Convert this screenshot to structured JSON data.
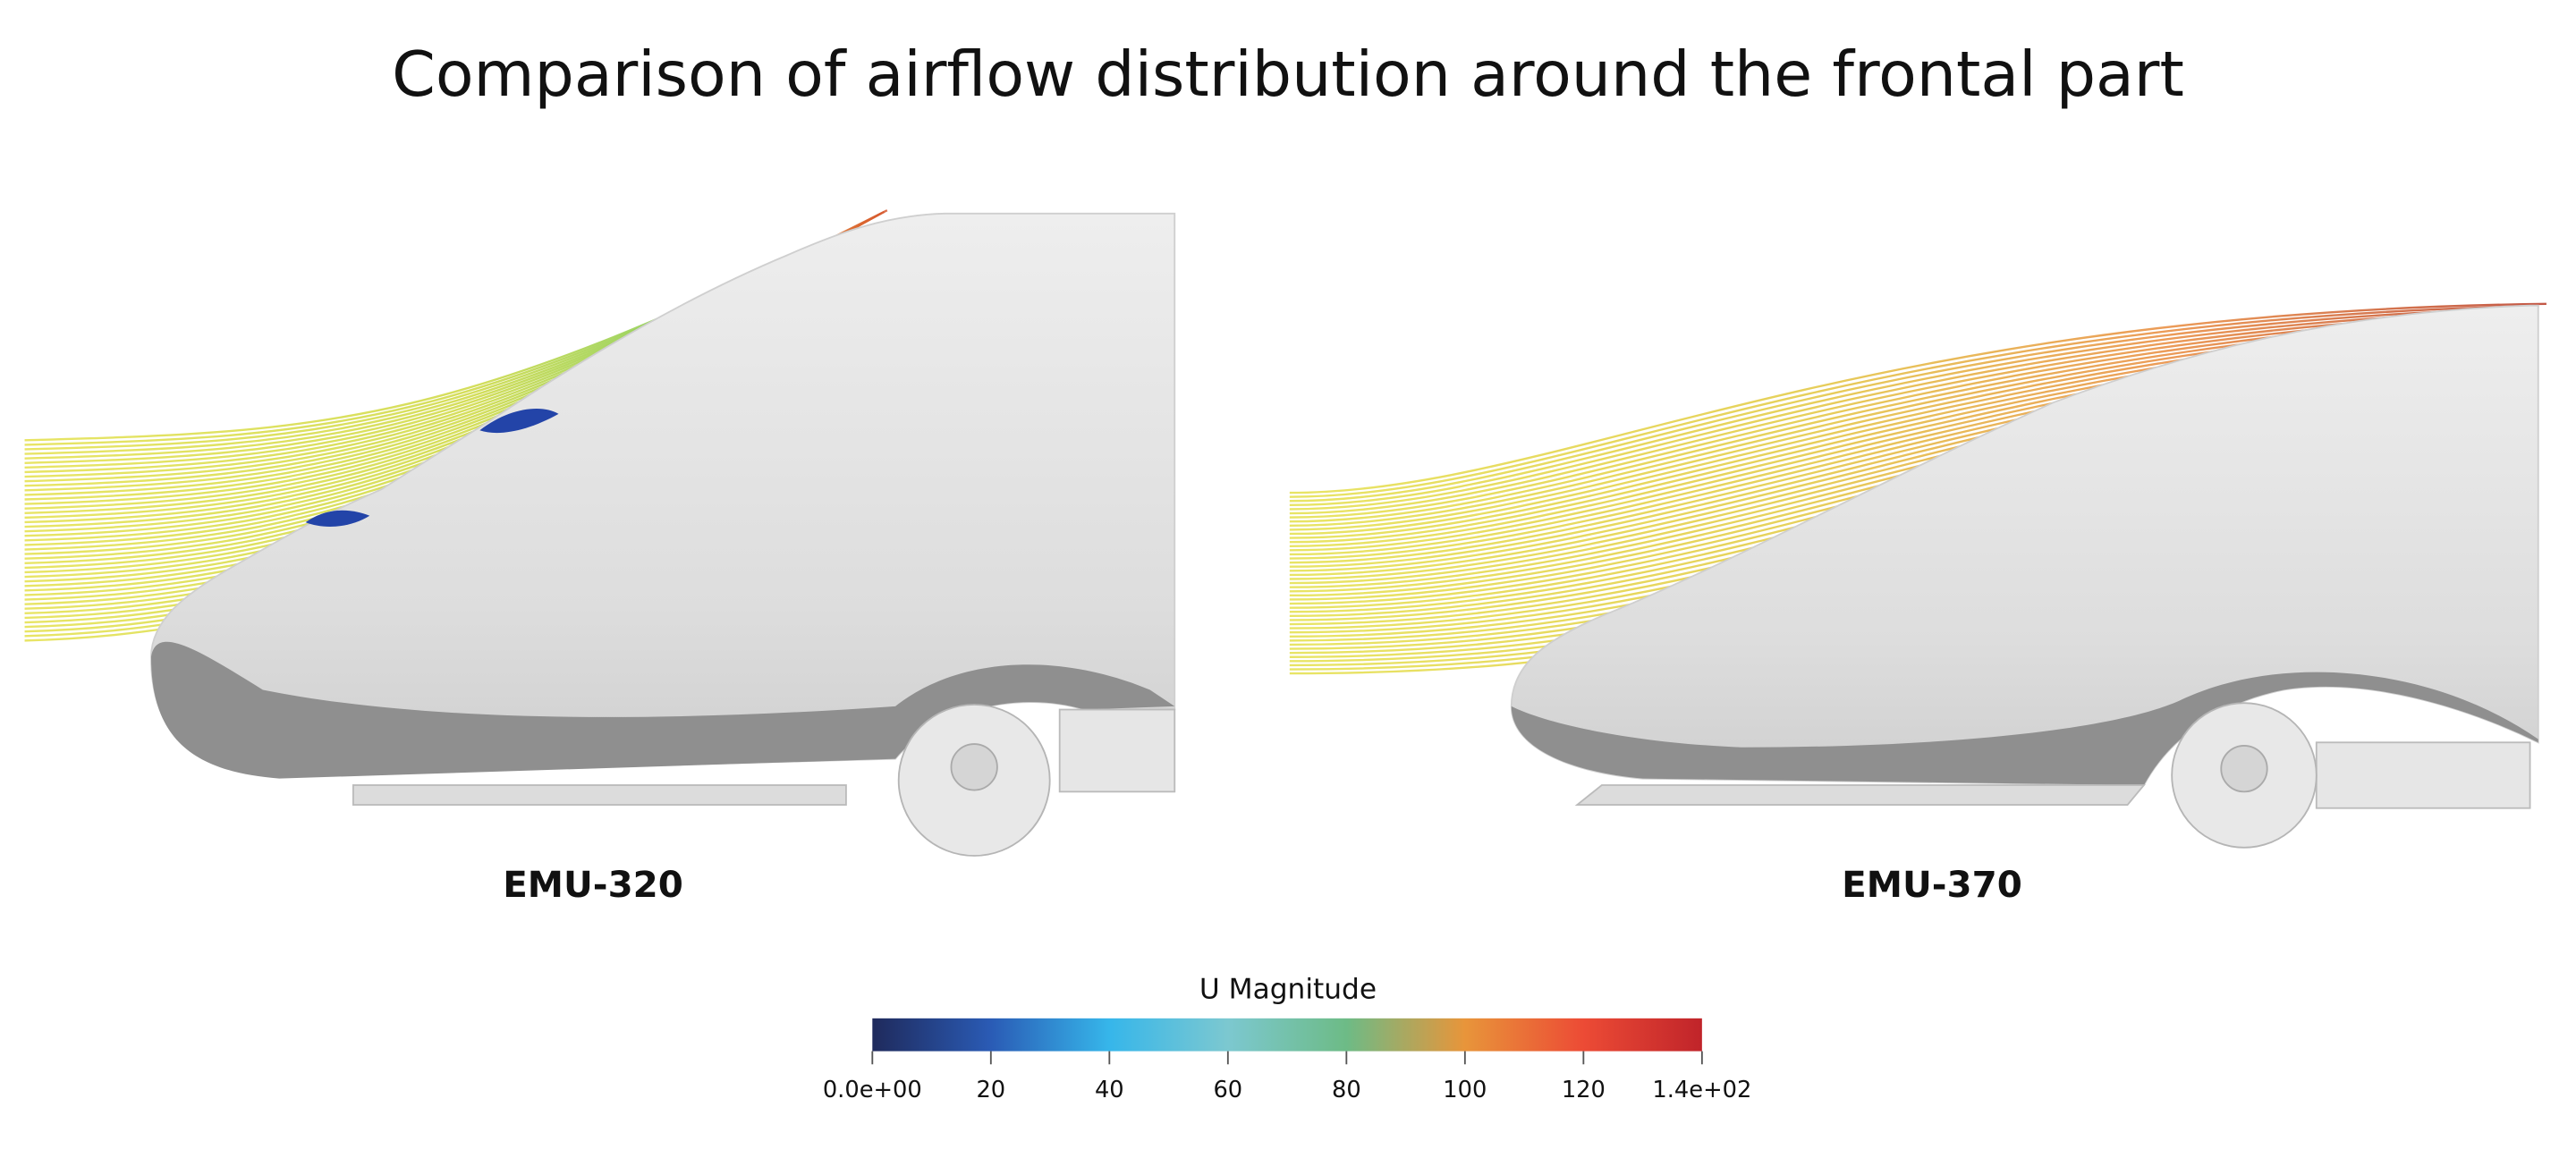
{
  "title": "Comparison of airflow distribution around the frontal part",
  "panels": [
    {
      "label": "EMU-320"
    },
    {
      "label": "EMU-370"
    }
  ],
  "colorbar": {
    "title": "U Magnitude",
    "lim": [
      0,
      140
    ],
    "ticks": [
      {
        "value": 0,
        "label": "0.0e+00"
      },
      20,
      40,
      60,
      80,
      100,
      120,
      {
        "value": 140,
        "label": "1.4e+02"
      }
    ],
    "colors": [
      "#1f2a5c",
      "#2a5bb5",
      "#36b6ea",
      "#7cc8d0",
      "#6dbb86",
      "#e8953a",
      "#ec4b35",
      "#c0242a"
    ]
  }
}
